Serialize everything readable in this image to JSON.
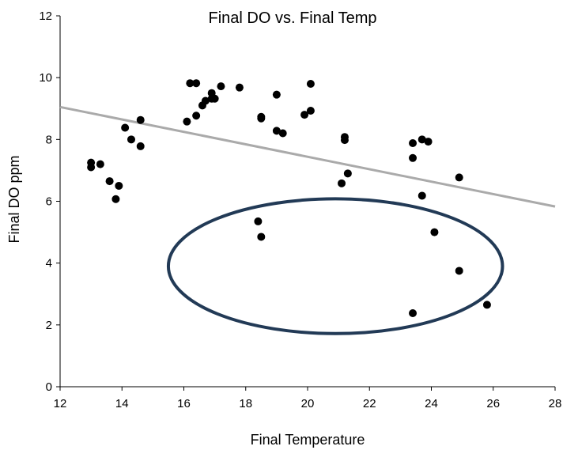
{
  "chart_data": {
    "type": "scatter",
    "title": "Final DO vs. Final Temp",
    "xlabel": "Final Temperature",
    "ylabel": "Final DO ppm",
    "xlim": [
      12,
      28
    ],
    "ylim": [
      0,
      12
    ],
    "xticks": [
      12,
      14,
      16,
      18,
      20,
      22,
      24,
      26,
      28
    ],
    "yticks": [
      0,
      2,
      4,
      6,
      8,
      10,
      12
    ],
    "grid": false,
    "point_color": "#000000",
    "trendline": {
      "x": [
        12,
        28
      ],
      "y": [
        9.05,
        5.83
      ],
      "color": "#aaaaaa"
    },
    "annotation_ellipse": {
      "center_x": 20.9,
      "center_y": 3.9,
      "radius_x": 5.4,
      "radius_y": 2.18,
      "color": "#223a56"
    },
    "points": [
      {
        "x": 13.0,
        "y": 7.25
      },
      {
        "x": 13.0,
        "y": 7.1
      },
      {
        "x": 13.3,
        "y": 7.2
      },
      {
        "x": 13.6,
        "y": 6.65
      },
      {
        "x": 13.8,
        "y": 6.07
      },
      {
        "x": 13.9,
        "y": 6.5
      },
      {
        "x": 14.1,
        "y": 8.38
      },
      {
        "x": 14.3,
        "y": 8.0
      },
      {
        "x": 14.6,
        "y": 8.63
      },
      {
        "x": 14.6,
        "y": 7.78
      },
      {
        "x": 16.1,
        "y": 8.58
      },
      {
        "x": 16.2,
        "y": 9.82
      },
      {
        "x": 16.4,
        "y": 9.82
      },
      {
        "x": 16.4,
        "y": 8.77
      },
      {
        "x": 16.6,
        "y": 9.1
      },
      {
        "x": 16.7,
        "y": 9.25
      },
      {
        "x": 16.9,
        "y": 9.5
      },
      {
        "x": 16.9,
        "y": 9.32
      },
      {
        "x": 17.0,
        "y": 9.32
      },
      {
        "x": 17.2,
        "y": 9.72
      },
      {
        "x": 17.8,
        "y": 9.68
      },
      {
        "x": 18.4,
        "y": 5.35
      },
      {
        "x": 18.5,
        "y": 8.73
      },
      {
        "x": 18.5,
        "y": 8.68
      },
      {
        "x": 18.5,
        "y": 4.85
      },
      {
        "x": 19.0,
        "y": 9.45
      },
      {
        "x": 19.0,
        "y": 8.28
      },
      {
        "x": 19.2,
        "y": 8.2
      },
      {
        "x": 19.9,
        "y": 8.8
      },
      {
        "x": 20.1,
        "y": 9.8
      },
      {
        "x": 20.1,
        "y": 8.93
      },
      {
        "x": 21.1,
        "y": 6.58
      },
      {
        "x": 21.2,
        "y": 8.08
      },
      {
        "x": 21.2,
        "y": 7.98
      },
      {
        "x": 21.3,
        "y": 6.9
      },
      {
        "x": 23.4,
        "y": 7.88
      },
      {
        "x": 23.4,
        "y": 7.4
      },
      {
        "x": 23.4,
        "y": 2.38
      },
      {
        "x": 23.7,
        "y": 8.0
      },
      {
        "x": 23.7,
        "y": 6.18
      },
      {
        "x": 23.9,
        "y": 7.93
      },
      {
        "x": 24.1,
        "y": 5.0
      },
      {
        "x": 24.9,
        "y": 6.77
      },
      {
        "x": 24.9,
        "y": 3.75
      },
      {
        "x": 25.8,
        "y": 2.65
      }
    ]
  }
}
